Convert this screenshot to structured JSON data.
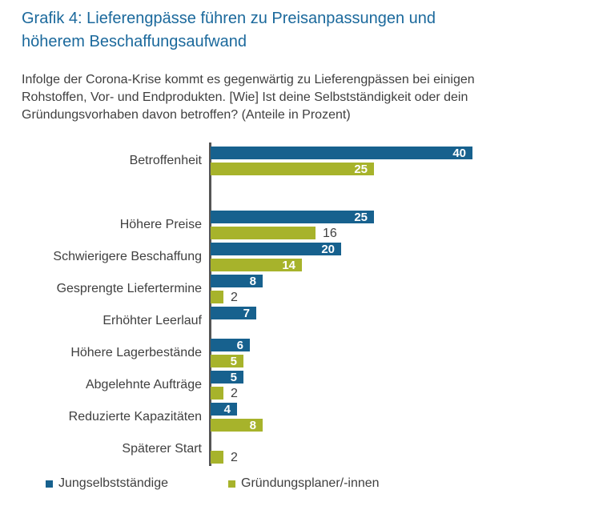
{
  "header": {
    "title_lines": [
      "Grafik 4: Lieferengpässe führen zu Preisanpassungen und",
      "höherem Beschaffungsaufwand"
    ],
    "title_color": "#1B699C"
  },
  "subtitle": {
    "lines": [
      "Infolge der Corona-Krise kommt es gegenwärtig zu Lieferengpässen bei einigen",
      "Rohstoffen, Vor- und Endprodukten. [Wie] Ist deine Selbstständigkeit oder dein",
      "Gründungsvorhaben davon betroffen? (Anteile in Prozent)"
    ],
    "color": "#3F3F3F"
  },
  "chart_data": {
    "type": "bar",
    "orientation": "horizontal",
    "unit": "percent",
    "grid": false,
    "axis_color": "#555555",
    "categories": [
      "Betroffenheit",
      "Höhere Preise",
      "Schwierigere Beschaffung",
      "Gesprengte Liefertermine",
      "Erhöhter Leerlauf",
      "Höhere Lagerbestände",
      "Abgelehnte Aufträge",
      "Reduzierte Kapazitäten",
      "Späterer Start"
    ],
    "series": [
      {
        "name": "Jungselbstständige",
        "color": "#17618E",
        "values": [
          40,
          25,
          20,
          8,
          7,
          6,
          5,
          4,
          null
        ],
        "label_pos": [
          "in",
          "in",
          "in",
          "in",
          "in",
          "in",
          "in",
          "in",
          null
        ]
      },
      {
        "name": "Gründungsplaner/-innen",
        "color": "#A7B32B",
        "values": [
          25,
          16,
          14,
          2,
          null,
          5,
          2,
          8,
          2
        ],
        "label_pos": [
          "in",
          "out",
          "in",
          "out",
          null,
          "in",
          "out",
          "in",
          "out"
        ]
      }
    ],
    "value_label_colors": {
      "inside": "#FFFFFF",
      "outside": "#3F3F3F"
    },
    "xlim": [
      0,
      49
    ],
    "legend_position": "bottom"
  },
  "legend": {
    "items": [
      {
        "label": "Jungselbstständige",
        "color": "#17618E"
      },
      {
        "label": "Gründungsplaner/-innen",
        "color": "#A7B32B"
      }
    ]
  }
}
